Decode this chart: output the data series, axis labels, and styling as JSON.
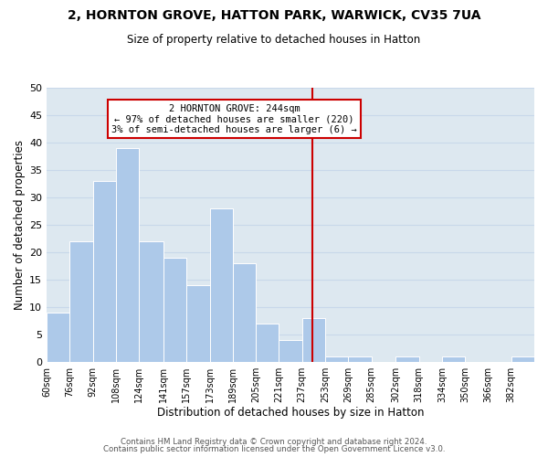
{
  "title1": "2, HORNTON GROVE, HATTON PARK, WARWICK, CV35 7UA",
  "title2": "Size of property relative to detached houses in Hatton",
  "xlabel": "Distribution of detached houses by size in Hatton",
  "ylabel": "Number of detached properties",
  "bar_heights": [
    9,
    22,
    33,
    39,
    22,
    19,
    14,
    28,
    18,
    7,
    4,
    8,
    1,
    1,
    0,
    1,
    0,
    1,
    0,
    0,
    1
  ],
  "bin_edges": [
    60,
    76,
    92,
    108,
    124,
    141,
    157,
    173,
    189,
    205,
    221,
    237,
    253,
    269,
    285,
    302,
    318,
    334,
    350,
    366,
    382,
    398
  ],
  "bin_labels": [
    "60sqm",
    "76sqm",
    "92sqm",
    "108sqm",
    "124sqm",
    "141sqm",
    "157sqm",
    "173sqm",
    "189sqm",
    "205sqm",
    "221sqm",
    "237sqm",
    "253sqm",
    "269sqm",
    "285sqm",
    "302sqm",
    "318sqm",
    "334sqm",
    "350sqm",
    "366sqm",
    "382sqm"
  ],
  "bar_color": "#adc9e9",
  "bar_edge_color": "#ffffff",
  "grid_color": "#c8d8ea",
  "vline_x": 244,
  "vline_color": "#cc0000",
  "ylim": [
    0,
    50
  ],
  "yticks": [
    0,
    5,
    10,
    15,
    20,
    25,
    30,
    35,
    40,
    45,
    50
  ],
  "annotation_title": "2 HORNTON GROVE: 244sqm",
  "annotation_line1": "← 97% of detached houses are smaller (220)",
  "annotation_line2": "3% of semi-detached houses are larger (6) →",
  "annotation_box_color": "#ffffff",
  "annotation_border_color": "#cc0000",
  "footer1": "Contains HM Land Registry data © Crown copyright and database right 2024.",
  "footer2": "Contains public sector information licensed under the Open Government Licence v3.0.",
  "fig_bg_color": "#ffffff",
  "plot_bg_color": "#dde8f0"
}
